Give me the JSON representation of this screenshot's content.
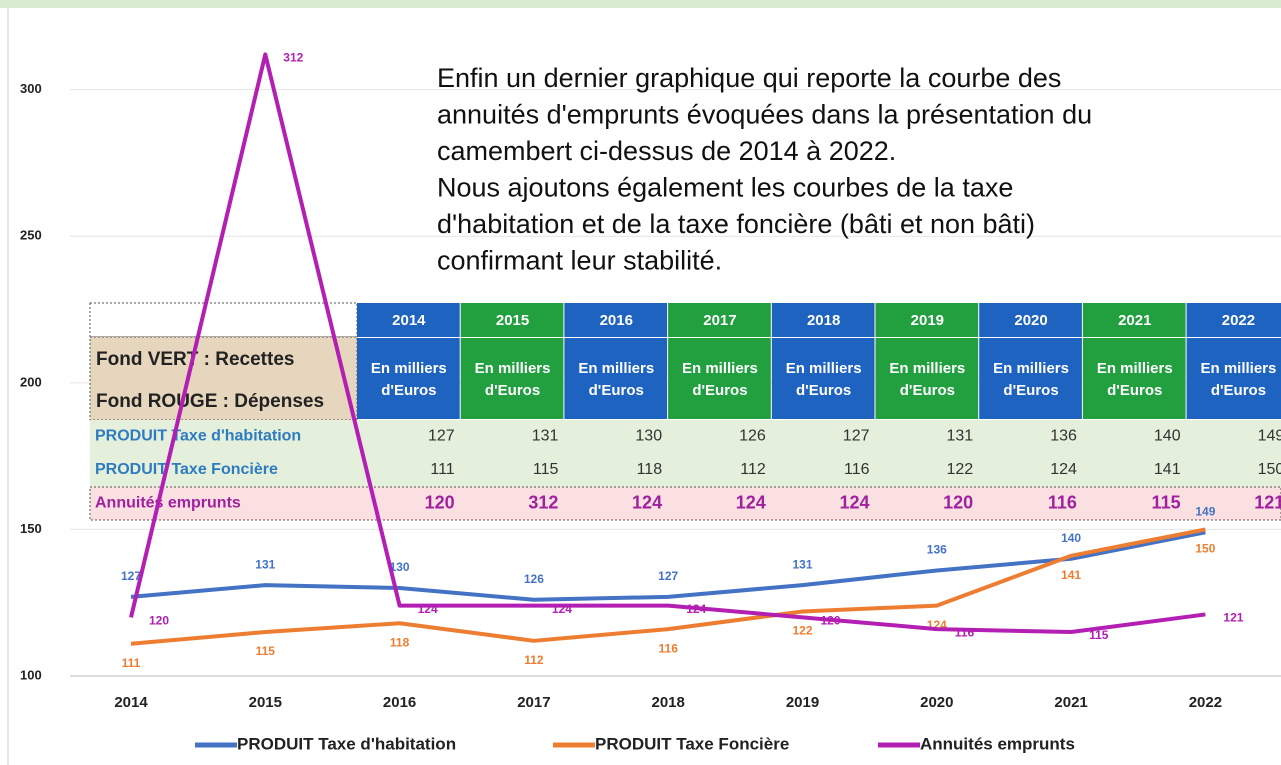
{
  "chart_data": {
    "type": "line",
    "annotation": [
      "Enfin un dernier graphique qui reporte la courbe des",
      "annuités d'emprunts évoquées dans la présentation du",
      "camembert ci-dessus de 2014 à 2022.",
      "Nous ajoutons également les courbes de la taxe",
      "d'habitation et de la taxe foncière (bâti et non bâti)",
      "confirmant leur stabilité."
    ],
    "categories": [
      "2014",
      "2015",
      "2016",
      "2017",
      "2018",
      "2019",
      "2020",
      "2021",
      "2022"
    ],
    "series": [
      {
        "name": "PRODUIT Taxe d'habitation",
        "color": "#4472c4",
        "values": [
          127,
          131,
          130,
          126,
          127,
          131,
          136,
          140,
          149
        ]
      },
      {
        "name": "PRODUIT Taxe Foncière",
        "color": "#ed7d31",
        "values": [
          111,
          115,
          118,
          112,
          116,
          122,
          124,
          141,
          150
        ]
      },
      {
        "name": "Annuités emprunts",
        "color": "#b21fb2",
        "values": [
          120,
          312,
          124,
          124,
          124,
          120,
          116,
          115,
          121
        ]
      }
    ],
    "ylim": [
      100,
      320
    ],
    "yticks": [
      100,
      150,
      200,
      250,
      300
    ],
    "grid": true,
    "legend": "bottom",
    "table": {
      "legend_lines": [
        "Fond VERT : Recettes",
        "Fond ROUGE : Dépenses"
      ],
      "unit_lines": [
        "En milliers",
        "d'Euros"
      ]
    }
  }
}
